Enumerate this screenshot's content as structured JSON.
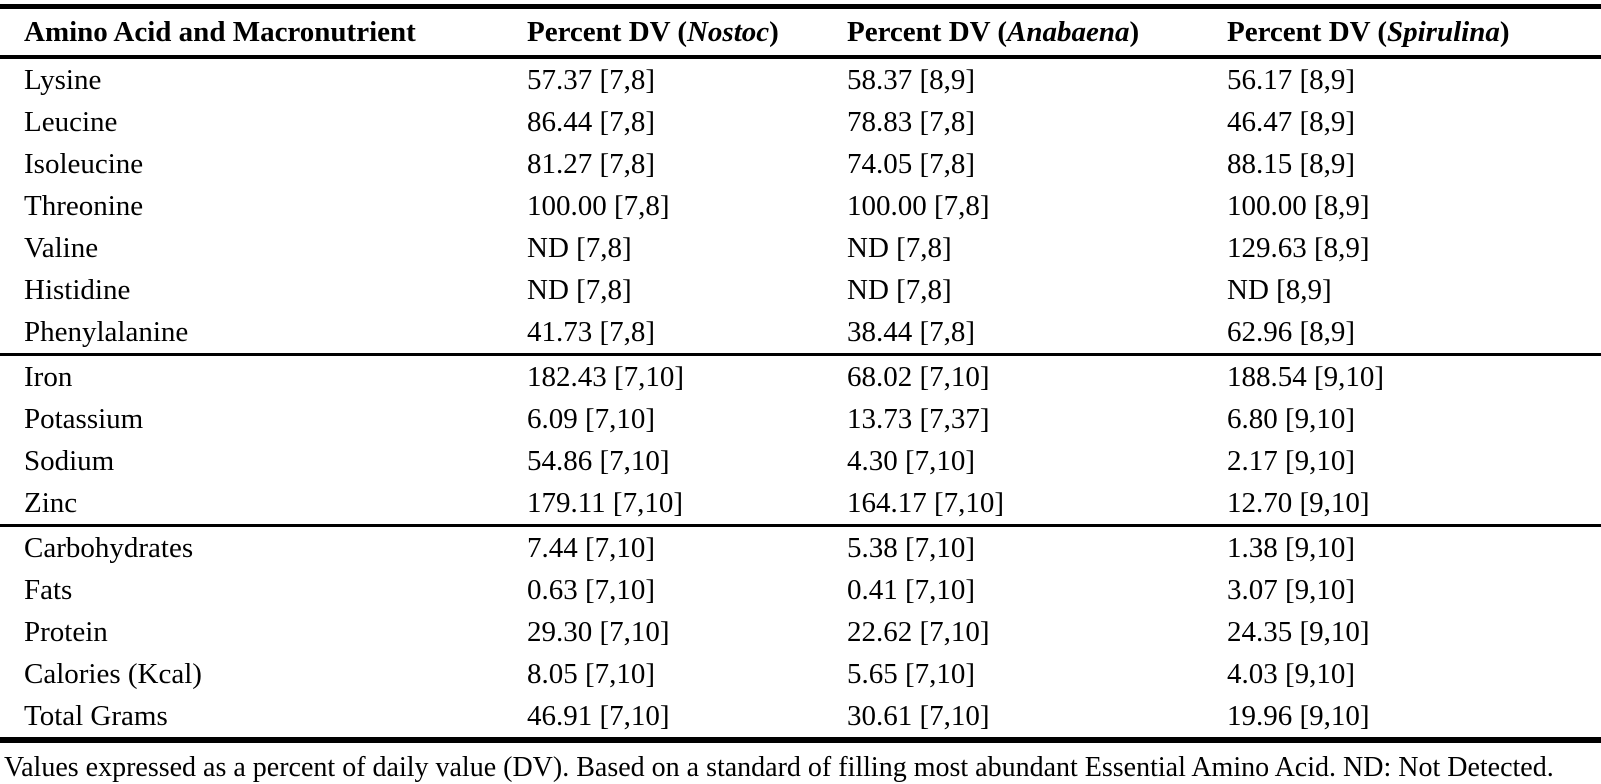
{
  "table": {
    "columns": [
      {
        "label": "Amino Acid and Macronutrient"
      },
      {
        "prefix": "Percent DV (",
        "species": "Nostoc",
        "suffix": ")"
      },
      {
        "prefix": "Percent DV (",
        "species": "Anabaena",
        "suffix": ")"
      },
      {
        "prefix": "Percent DV (",
        "species": "Spirulina",
        "suffix": ")"
      }
    ],
    "sections": [
      {
        "name": "essential-amino-acids",
        "rows": [
          {
            "label": "Lysine",
            "values": [
              "57.37 [7,8]",
              "58.37 [8,9]",
              "56.17 [8,9]"
            ]
          },
          {
            "label": "Leucine",
            "values": [
              "86.44 [7,8]",
              "78.83 [7,8]",
              "46.47 [8,9]"
            ]
          },
          {
            "label": "Isoleucine",
            "values": [
              "81.27 [7,8]",
              "74.05 [7,8]",
              "88.15 [8,9]"
            ]
          },
          {
            "label": "Threonine",
            "values": [
              "100.00 [7,8]",
              "100.00 [7,8]",
              "100.00 [8,9]"
            ]
          },
          {
            "label": "Valine",
            "values": [
              "ND [7,8]",
              "ND [7,8]",
              "129.63 [8,9]"
            ]
          },
          {
            "label": "Histidine",
            "values": [
              "ND [7,8]",
              "ND [7,8]",
              "ND [8,9]"
            ]
          },
          {
            "label": "Phenylalanine",
            "values": [
              "41.73 [7,8]",
              "38.44 [7,8]",
              "62.96 [8,9]"
            ]
          }
        ]
      },
      {
        "name": "minerals",
        "rows": [
          {
            "label": "Iron",
            "values": [
              "182.43 [7,10]",
              "68.02 [7,10]",
              "188.54 [9,10]"
            ]
          },
          {
            "label": "Potassium",
            "values": [
              "6.09 [7,10]",
              "13.73 [7,37]",
              "6.80 [9,10]"
            ]
          },
          {
            "label": "Sodium",
            "values": [
              "54.86 [7,10]",
              "4.30 [7,10]",
              "2.17 [9,10]"
            ]
          },
          {
            "label": "Zinc",
            "values": [
              "179.11 [7,10]",
              "164.17 [7,10]",
              "12.70 [9,10]"
            ]
          }
        ]
      },
      {
        "name": "macronutrients",
        "rows": [
          {
            "label": "Carbohydrates",
            "values": [
              "7.44 [7,10]",
              "5.38 [7,10]",
              "1.38 [9,10]"
            ]
          },
          {
            "label": "Fats",
            "values": [
              "0.63 [7,10]",
              "0.41 [7,10]",
              "3.07 [9,10]"
            ]
          },
          {
            "label": "Protein",
            "values": [
              "29.30 [7,10]",
              "22.62 [7,10]",
              "24.35 [9,10]"
            ]
          },
          {
            "label": "Calories (Kcal)",
            "values": [
              "8.05 [7,10]",
              "5.65 [7,10]",
              "4.03 [9,10]"
            ]
          },
          {
            "label": "Total Grams",
            "values": [
              "46.91 [7,10]",
              "30.61 [7,10]",
              "19.96 [9,10]"
            ]
          }
        ]
      }
    ],
    "footnote": "Values expressed as a percent of daily value (DV). Based on a standard of filling most abundant Essential Amino Acid. ND: Not Detected."
  }
}
